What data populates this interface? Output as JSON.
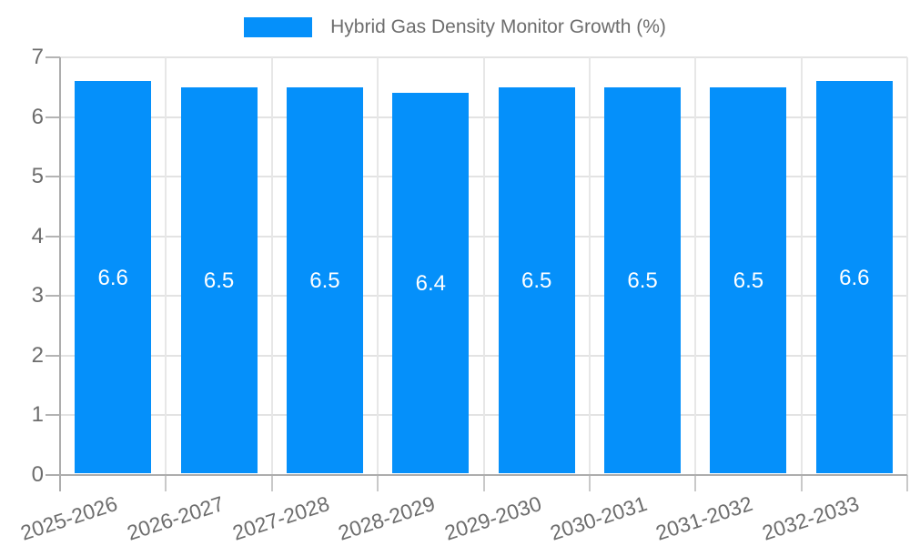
{
  "chart_data": {
    "type": "bar",
    "title": "Hybrid Gas Density Monitor Growth (%)",
    "categories": [
      "2025-2026",
      "2026-2027",
      "2027-2028",
      "2028-2029",
      "2029-2030",
      "2030-2031",
      "2031-2032",
      "2032-2033"
    ],
    "values": [
      6.6,
      6.5,
      6.5,
      6.4,
      6.5,
      6.5,
      6.5,
      6.6
    ],
    "value_labels": [
      "6.6",
      "6.5",
      "6.5",
      "6.4",
      "6.5",
      "6.5",
      "6.5",
      "6.6"
    ],
    "xlabel": "",
    "ylabel": "",
    "ylim": [
      0,
      7
    ],
    "yticks": [
      0,
      1,
      2,
      3,
      4,
      5,
      6,
      7
    ],
    "grid": true,
    "legend_position": "top",
    "bar_color": "#0590fa",
    "value_label_color": "#ffffff",
    "text_color": "#6d6d6d",
    "grid_color": "#e3e3e3",
    "axis_color": "#adadad",
    "background_color": "#ffffff"
  }
}
